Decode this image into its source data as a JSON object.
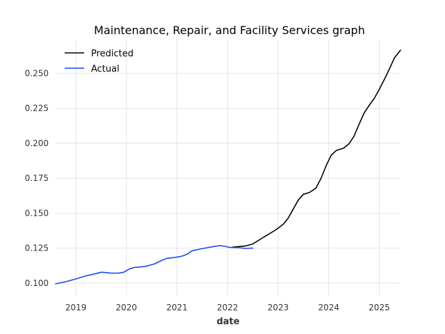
{
  "chart_data": {
    "type": "line",
    "title": "Maintenance, Repair, and Facility Services graph",
    "xlabel": "date",
    "ylabel": "",
    "xlim": [
      2018.6,
      2025.42
    ],
    "ylim": [
      0.0915,
      0.2735
    ],
    "x_ticks": [
      2019,
      2020,
      2021,
      2022,
      2023,
      2024,
      2025
    ],
    "x_tick_labels": [
      "2019",
      "2020",
      "2021",
      "2022",
      "2023",
      "2024",
      "2025"
    ],
    "y_ticks": [
      0.1,
      0.125,
      0.15,
      0.175,
      0.2,
      0.225,
      0.25
    ],
    "y_tick_labels": [
      "0.100",
      "0.125",
      "0.150",
      "0.175",
      "0.200",
      "0.225",
      "0.250"
    ],
    "grid": true,
    "legend_position": "top-left",
    "series": [
      {
        "name": "Predicted",
        "color": "#000000",
        "x": [
          2022.1,
          2022.2,
          2022.35,
          2022.5,
          2022.7,
          2022.95,
          2023.1,
          2023.2,
          2023.3,
          2023.4,
          2023.5,
          2023.62,
          2023.75,
          2023.85,
          2023.95,
          2024.05,
          2024.15,
          2024.3,
          2024.4,
          2024.5,
          2024.6,
          2024.7,
          2024.8,
          2024.9,
          2025.0,
          2025.1,
          2025.2,
          2025.3,
          2025.42
        ],
        "y": [
          0.1257,
          0.126,
          0.1265,
          0.128,
          0.1325,
          0.138,
          0.142,
          0.1465,
          0.153,
          0.1595,
          0.1635,
          0.1648,
          0.168,
          0.175,
          0.184,
          0.1915,
          0.1948,
          0.1965,
          0.1995,
          0.205,
          0.2135,
          0.2215,
          0.227,
          0.232,
          0.2385,
          0.2455,
          0.253,
          0.261,
          0.2665
        ]
      },
      {
        "name": "Actual",
        "color": "#1649ee",
        "x": [
          2018.6,
          2018.8,
          2019.0,
          2019.2,
          2019.4,
          2019.5,
          2019.6,
          2019.7,
          2019.85,
          2019.95,
          2020.05,
          2020.15,
          2020.3,
          2020.4,
          2020.55,
          2020.7,
          2020.8,
          2020.95,
          2021.1,
          2021.2,
          2021.3,
          2021.45,
          2021.55,
          2021.7,
          2021.85,
          2021.95,
          2022.05,
          2022.2,
          2022.35,
          2022.5
        ],
        "y": [
          0.0995,
          0.101,
          0.103,
          0.1052,
          0.1068,
          0.1078,
          0.1075,
          0.1071,
          0.1072,
          0.1078,
          0.11,
          0.1112,
          0.1117,
          0.1122,
          0.1137,
          0.1163,
          0.1177,
          0.1183,
          0.1193,
          0.1207,
          0.1232,
          0.1243,
          0.125,
          0.126,
          0.1268,
          0.1263,
          0.1255,
          0.1254,
          0.1248,
          0.125
        ]
      }
    ]
  }
}
